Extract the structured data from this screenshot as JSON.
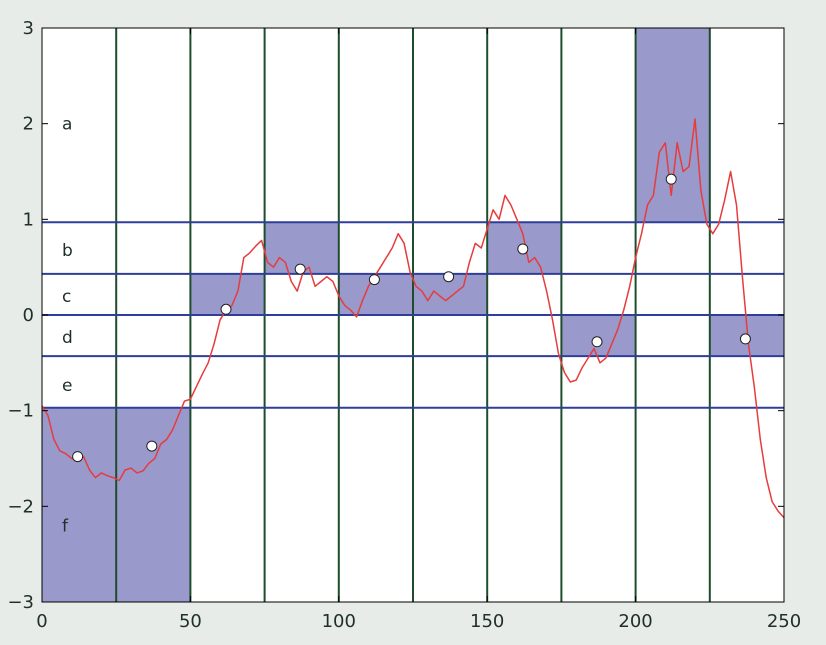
{
  "chart_data": {
    "type": "line",
    "title": "",
    "xlabel": "",
    "ylabel": "",
    "xlim": [
      0,
      250
    ],
    "ylim": [
      -3,
      3
    ],
    "x_ticks": [
      0,
      50,
      100,
      150,
      200,
      250
    ],
    "y_ticks": [
      -3,
      -2,
      -1,
      0,
      1,
      2,
      3
    ],
    "x_tick_labels": [
      "0",
      "50",
      "100",
      "150",
      "200",
      "250"
    ],
    "y_tick_labels": [
      "−3",
      "−2",
      "−1",
      "0",
      "1",
      "2",
      "3"
    ],
    "grid": false,
    "vertical_segment_lines": [
      25,
      50,
      75,
      100,
      125,
      150,
      175,
      200,
      225
    ],
    "horizontal_breakpoints": [
      0.97,
      0.43,
      0,
      -0.43,
      -0.97
    ],
    "band_labels": [
      {
        "label": "a",
        "y": 2.0
      },
      {
        "label": "b",
        "y": 0.68
      },
      {
        "label": "c",
        "y": 0.2
      },
      {
        "label": "d",
        "y": -0.23
      },
      {
        "label": "e",
        "y": -0.73
      },
      {
        "label": "f",
        "y": -2.2
      }
    ],
    "segment_highlights": [
      {
        "x0": 0,
        "x1": 25,
        "y0": -3,
        "y1": -0.97
      },
      {
        "x0": 25,
        "x1": 50,
        "y0": -3,
        "y1": -0.97
      },
      {
        "x0": 50,
        "x1": 75,
        "y0": 0,
        "y1": 0.43
      },
      {
        "x0": 75,
        "x1": 100,
        "y0": 0.43,
        "y1": 0.97
      },
      {
        "x0": 100,
        "x1": 125,
        "y0": 0,
        "y1": 0.43
      },
      {
        "x0": 125,
        "x1": 150,
        "y0": 0,
        "y1": 0.43
      },
      {
        "x0": 150,
        "x1": 175,
        "y0": 0.43,
        "y1": 0.97
      },
      {
        "x0": 175,
        "x1": 200,
        "y0": -0.43,
        "y1": 0
      },
      {
        "x0": 200,
        "x1": 225,
        "y0": 0.97,
        "y1": 3
      },
      {
        "x0": 225,
        "x1": 250,
        "y0": -0.43,
        "y1": 0
      }
    ],
    "segment_means": [
      {
        "x": 12,
        "y": -1.48
      },
      {
        "x": 37,
        "y": -1.37
      },
      {
        "x": 62,
        "y": 0.06
      },
      {
        "x": 87,
        "y": 0.48
      },
      {
        "x": 112,
        "y": 0.37
      },
      {
        "x": 137,
        "y": 0.4
      },
      {
        "x": 162,
        "y": 0.69
      },
      {
        "x": 187,
        "y": -0.28
      },
      {
        "x": 212,
        "y": 1.42
      },
      {
        "x": 237,
        "y": -0.25
      }
    ],
    "series": [
      {
        "x": [
          0,
          2,
          4,
          6,
          8,
          10,
          12,
          14,
          16,
          18,
          20,
          22,
          24,
          26,
          28,
          30,
          32,
          34,
          36,
          38,
          40,
          42,
          44,
          46,
          48,
          50,
          52,
          54,
          56,
          58,
          60,
          62,
          64,
          66,
          68,
          70,
          72,
          74,
          76,
          78,
          80,
          82,
          84,
          86,
          88,
          90,
          92,
          94,
          96,
          98,
          100,
          102,
          104,
          106,
          108,
          110,
          112,
          114,
          116,
          118,
          120,
          122,
          124,
          126,
          128,
          130,
          132,
          134,
          136,
          138,
          140,
          142,
          144,
          146,
          148,
          150,
          152,
          154,
          156,
          158,
          160,
          162,
          164,
          166,
          168,
          170,
          172,
          174,
          176,
          178,
          180,
          182,
          184,
          186,
          188,
          190,
          192,
          194,
          196,
          198,
          200,
          202,
          204,
          206,
          208,
          210,
          212,
          214,
          216,
          218,
          220,
          222,
          224,
          226,
          228,
          230,
          232,
          234,
          236,
          238,
          240,
          242,
          244,
          246,
          248,
          250
        ],
        "y": [
          -0.95,
          -1.05,
          -1.3,
          -1.42,
          -1.45,
          -1.5,
          -1.52,
          -1.48,
          -1.62,
          -1.7,
          -1.65,
          -1.68,
          -1.7,
          -1.73,
          -1.62,
          -1.6,
          -1.65,
          -1.63,
          -1.55,
          -1.5,
          -1.35,
          -1.3,
          -1.2,
          -1.05,
          -0.9,
          -0.88,
          -0.75,
          -0.62,
          -0.5,
          -0.3,
          -0.05,
          0.05,
          0.1,
          0.25,
          0.6,
          0.65,
          0.72,
          0.78,
          0.55,
          0.5,
          0.6,
          0.55,
          0.35,
          0.25,
          0.45,
          0.5,
          0.3,
          0.35,
          0.4,
          0.35,
          0.2,
          0.1,
          0.05,
          -0.02,
          0.15,
          0.3,
          0.4,
          0.5,
          0.6,
          0.7,
          0.85,
          0.75,
          0.45,
          0.3,
          0.25,
          0.15,
          0.25,
          0.2,
          0.15,
          0.2,
          0.25,
          0.3,
          0.55,
          0.75,
          0.7,
          0.9,
          1.1,
          1.0,
          1.25,
          1.15,
          1.0,
          0.85,
          0.55,
          0.6,
          0.5,
          0.25,
          -0.05,
          -0.4,
          -0.6,
          -0.7,
          -0.68,
          -0.55,
          -0.45,
          -0.35,
          -0.5,
          -0.45,
          -0.3,
          -0.15,
          0.05,
          0.3,
          0.6,
          0.85,
          1.15,
          1.25,
          1.7,
          1.8,
          1.25,
          1.8,
          1.5,
          1.55,
          2.05,
          1.3,
          0.95,
          0.85,
          0.95,
          1.2,
          1.5,
          1.15,
          0.4,
          -0.3,
          -0.75,
          -1.3,
          -1.7,
          -1.95,
          -2.05,
          -2.12
        ]
      }
    ],
    "colors": {
      "figure_background": "#e7ece9",
      "plot_background": "#ffffff",
      "segment_line": "#1d4d2b",
      "breakpoint_line": "#2f3e9a",
      "highlight_fill": "#9a99cc",
      "series_line": "#e63c3c",
      "marker_fill": "#ffffff",
      "marker_edge": "#222222",
      "axis_text": "#1f2f2a"
    }
  }
}
